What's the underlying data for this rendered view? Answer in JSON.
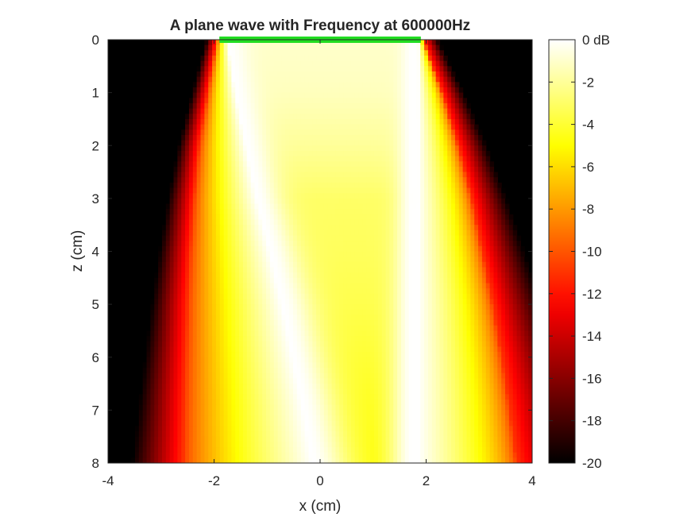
{
  "chart_data": {
    "type": "heatmap",
    "title": "A plane wave with Frequency at 600000Hz",
    "xlabel": "x (cm)",
    "ylabel": "z (cm)",
    "xlim": [
      -4,
      4
    ],
    "ylim": [
      0,
      8
    ],
    "y_reversed": true,
    "xticks": [
      "-4",
      "-2",
      "0",
      "2",
      "4"
    ],
    "yticks": [
      "0",
      "1",
      "2",
      "3",
      "4",
      "5",
      "6",
      "7",
      "8"
    ],
    "colormap": "hot",
    "colorbar": {
      "min": -20,
      "max": 0,
      "unit": "dB",
      "ticks": [
        "0 dB",
        "-2",
        "-4",
        "-6",
        "-8",
        "-10",
        "-12",
        "-14",
        "-16",
        "-18",
        "-20"
      ]
    },
    "source": {
      "x_range": [
        -1.9,
        1.9
      ],
      "z": 0,
      "color": "#22dd22"
    },
    "beam_profile": {
      "z": [
        0,
        1,
        2,
        3,
        4,
        5,
        6,
        7,
        8
      ],
      "left_edge_x": [
        -1.95,
        -2.12,
        -2.28,
        -2.38,
        -2.45,
        -2.5,
        -2.53,
        -2.56,
        -2.58
      ],
      "right_edge_x": [
        1.95,
        2.3,
        2.6,
        2.85,
        3.05,
        3.25,
        3.42,
        3.57,
        3.7
      ],
      "left_peak_x": [
        -1.75,
        -1.6,
        -1.4,
        -1.2,
        -0.95,
        -0.72,
        -0.52,
        -0.32,
        -0.15
      ],
      "right_peak_x": [
        1.75,
        1.75,
        1.75,
        1.75,
        1.75,
        1.75,
        1.75,
        1.75,
        1.75
      ],
      "center_level_db": [
        -1,
        -1.3,
        -2,
        -3,
        -3.2,
        -3.5,
        -4,
        -4.5,
        -5
      ]
    }
  }
}
